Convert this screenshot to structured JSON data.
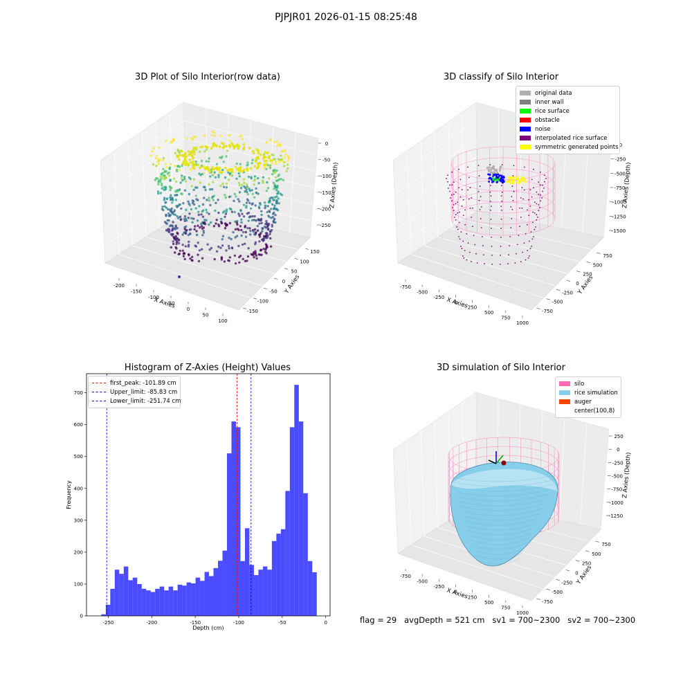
{
  "suptitle": "PJPJR01 2026-01-15 08:25:48",
  "panels": {
    "raw": {
      "title": "3D Plot of Silo Interior(row data)",
      "xlabel": "X Axies",
      "ylabel": "Y Axies",
      "zlabel": "Z Axies (Depth)",
      "xticks": [
        "-200",
        "-150",
        "-100",
        "-50",
        "0",
        "50",
        "100"
      ],
      "yticks": [
        "150",
        "100",
        "50",
        "0",
        "-50",
        "-100",
        "-150"
      ],
      "zticks": [
        "0",
        "-50",
        "-100",
        "-150",
        "-200",
        "-250"
      ]
    },
    "classify": {
      "title": "3D classify of Silo Interior",
      "xlabel": "X Axies",
      "ylabel": "Y Axies",
      "zlabel": "Z Axies (Depth)",
      "xticks": [
        "-750",
        "-500",
        "-250",
        "0",
        "250",
        "500",
        "750",
        "1000"
      ],
      "yticks": [
        "750",
        "500",
        "250",
        "0",
        "-250",
        "-500",
        "-750"
      ],
      "zticks": [
        "0",
        "-250",
        "-500",
        "-750",
        "-1000",
        "-1250",
        "-1500"
      ],
      "legend": [
        {
          "label": "original data",
          "color": "#b0b0b0"
        },
        {
          "label": "inner wall",
          "color": "#808080"
        },
        {
          "label": "rice surface",
          "color": "#00ff00"
        },
        {
          "label": "obstacle",
          "color": "#ff0000"
        },
        {
          "label": "noise",
          "color": "#0000ff"
        },
        {
          "label": "interpolated rice surface",
          "color": "#800080"
        },
        {
          "label": "symmetric generated points",
          "color": "#ffff00"
        }
      ]
    },
    "simulation": {
      "title": "3D simulation of Silo Interior",
      "xlabel": "X Axies",
      "ylabel": "Y Axies",
      "zlabel": "Z Axies (Depth)",
      "xticks": [
        "-750",
        "-500",
        "-250",
        "0",
        "250",
        "500",
        "750",
        "1000"
      ],
      "yticks": [
        "750",
        "500",
        "250",
        "0",
        "-250",
        "-500",
        "-750"
      ],
      "zticks": [
        "250",
        "0",
        "-250",
        "-500",
        "-750",
        "-1000",
        "-1250"
      ],
      "legend": [
        {
          "label": "silo",
          "color": "#ff69b4"
        },
        {
          "label": "rice simulation",
          "color": "#87ceeb"
        },
        {
          "label": "auger",
          "color": "#ff4500"
        },
        {
          "label": "center(100,8)",
          "color": "#ffffff"
        }
      ]
    }
  },
  "chart_data": {
    "type": "bar",
    "title": "Histogram of Z-Axies (Height) Values",
    "xlabel": "Depth (cm)",
    "ylabel": "Frequency",
    "xlim": [
      -275,
      5
    ],
    "ylim": [
      0,
      760
    ],
    "xticks": [
      "-250",
      "-200",
      "-150",
      "-100",
      "-50",
      "0"
    ],
    "yticks": [
      "0",
      "100",
      "200",
      "300",
      "400",
      "500",
      "600",
      "700"
    ],
    "bar_color": "#0000ff",
    "bin_start": -258,
    "bin_width": 5.16,
    "values": [
      5,
      35,
      85,
      145,
      132,
      155,
      112,
      120,
      100,
      85,
      80,
      75,
      85,
      92,
      80,
      92,
      80,
      98,
      95,
      105,
      102,
      120,
      110,
      138,
      125,
      150,
      173,
      205,
      510,
      610,
      592,
      172,
      275,
      160,
      128,
      145,
      155,
      145,
      235,
      258,
      272,
      392,
      592,
      725,
      610,
      385,
      172,
      137
    ],
    "lines": [
      {
        "label": "first_peak: -101.89 cm",
        "x": -101.89,
        "color": "#ff0000"
      },
      {
        "label": "Upper_limit: -85.83 cm",
        "x": -85.83,
        "color": "#0000cc"
      },
      {
        "label": "Lower_limit: -251.74 cm",
        "x": -251.74,
        "color": "#0000cc"
      }
    ]
  },
  "footer": "flag = 29   avgDepth = 521 cm   sv1 = 700~2300   sv2 = 700~2300"
}
